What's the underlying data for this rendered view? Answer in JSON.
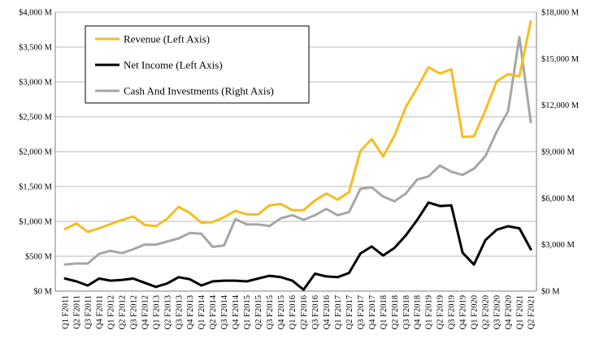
{
  "chart_data": {
    "type": "line",
    "title": "",
    "xlabel": "",
    "ylabel": "",
    "y2label": "",
    "grid": true,
    "legend_position": "top-left",
    "ylim": [
      0,
      4000
    ],
    "y2lim": [
      0,
      18000
    ],
    "y_ticks": [
      "$0 M",
      "$500 M",
      "$1,000 M",
      "$1,500 M",
      "$2,000 M",
      "$2,500 M",
      "$3,000 M",
      "$3,500 M",
      "$4,000 M"
    ],
    "y2_ticks": [
      "$0 M",
      "$3,000 M",
      "$6,000 M",
      "$9,000 M",
      "$12,000 M",
      "$15,000 M",
      "$18,000 M"
    ],
    "categories": [
      "Q1 F2011",
      "Q2 F2011",
      "Q3 F2011",
      "Q4 F2011",
      "Q1 F2012",
      "Q2 F2012",
      "Q3 F2012",
      "Q4 F2012",
      "Q1 F2013",
      "Q2 F2013",
      "Q3 F2013",
      "Q4 F2013",
      "Q1 F2014",
      "Q2 F2014",
      "Q3 F2014",
      "Q4 F2014",
      "Q1 F2015",
      "Q2 F2015",
      "Q3 F2015",
      "Q4 F2015",
      "Q1 F2016",
      "Q2 F2016",
      "Q3 F2016",
      "Q4 F2016",
      "Q1 F2017",
      "Q2 F2017",
      "Q3 F2017",
      "Q4 F2017",
      "Q1 F2018",
      "Q2 F2018",
      "Q3 F2018",
      "Q4 F2018",
      "Q1 F2019",
      "Q2 F2019",
      "Q3 F2019",
      "Q4 F2019",
      "Q1 F2020",
      "Q2 F2020",
      "Q3 F2020",
      "Q4 F2020",
      "Q1 F2021",
      "Q2 F2021"
    ],
    "series": [
      {
        "name": "Revenue (Left Axis)",
        "axis": "left",
        "color": "#f5bd1f",
        "values": [
          890,
          970,
          850,
          900,
          960,
          1020,
          1070,
          950,
          930,
          1040,
          1210,
          1120,
          980,
          990,
          1060,
          1150,
          1100,
          1100,
          1230,
          1250,
          1160,
          1160,
          1300,
          1400,
          1310,
          1420,
          2010,
          2180,
          1930,
          2230,
          2640,
          2910,
          3210,
          3120,
          3180,
          2210,
          2220,
          2590,
          3010,
          3110,
          3080,
          3870
        ]
      },
      {
        "name": "Net Income (Left Axis)",
        "axis": "left",
        "color": "#000000",
        "values": [
          180,
          140,
          80,
          180,
          150,
          160,
          180,
          120,
          60,
          110,
          200,
          170,
          80,
          140,
          150,
          150,
          140,
          180,
          220,
          200,
          150,
          20,
          250,
          210,
          200,
          260,
          540,
          640,
          510,
          620,
          800,
          1020,
          1270,
          1220,
          1230,
          550,
          380,
          730,
          880,
          930,
          900,
          600
        ]
      },
      {
        "name": "Cash And Investments (Right Axis)",
        "axis": "right",
        "color": "#a6a6a6",
        "values": [
          1720,
          1780,
          1780,
          2400,
          2600,
          2450,
          2700,
          3000,
          3000,
          3200,
          3400,
          3750,
          3700,
          2850,
          2950,
          4650,
          4300,
          4300,
          4200,
          4700,
          4900,
          4600,
          4900,
          5300,
          4900,
          5100,
          6600,
          6700,
          6100,
          5800,
          6300,
          7200,
          7400,
          8100,
          7700,
          7500,
          7900,
          8700,
          10300,
          11600,
          16400,
          10900
        ]
      }
    ]
  }
}
